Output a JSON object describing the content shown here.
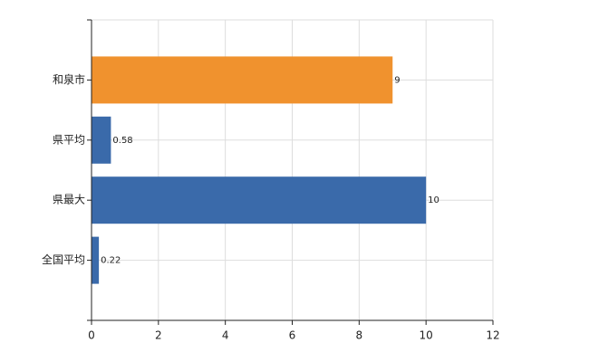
{
  "chart_data": {
    "type": "bar",
    "orientation": "horizontal",
    "categories": [
      "和泉市",
      "県平均",
      "県最大",
      "全国平均"
    ],
    "values": [
      9,
      0.58,
      10,
      0.22
    ],
    "colors": [
      "#f0922e",
      "#3a6aaa",
      "#3a6aaa",
      "#3a6aaa"
    ],
    "xlim": [
      0,
      12
    ],
    "xticks": [
      0,
      2,
      4,
      6,
      8,
      10,
      12
    ],
    "grid": true
  }
}
